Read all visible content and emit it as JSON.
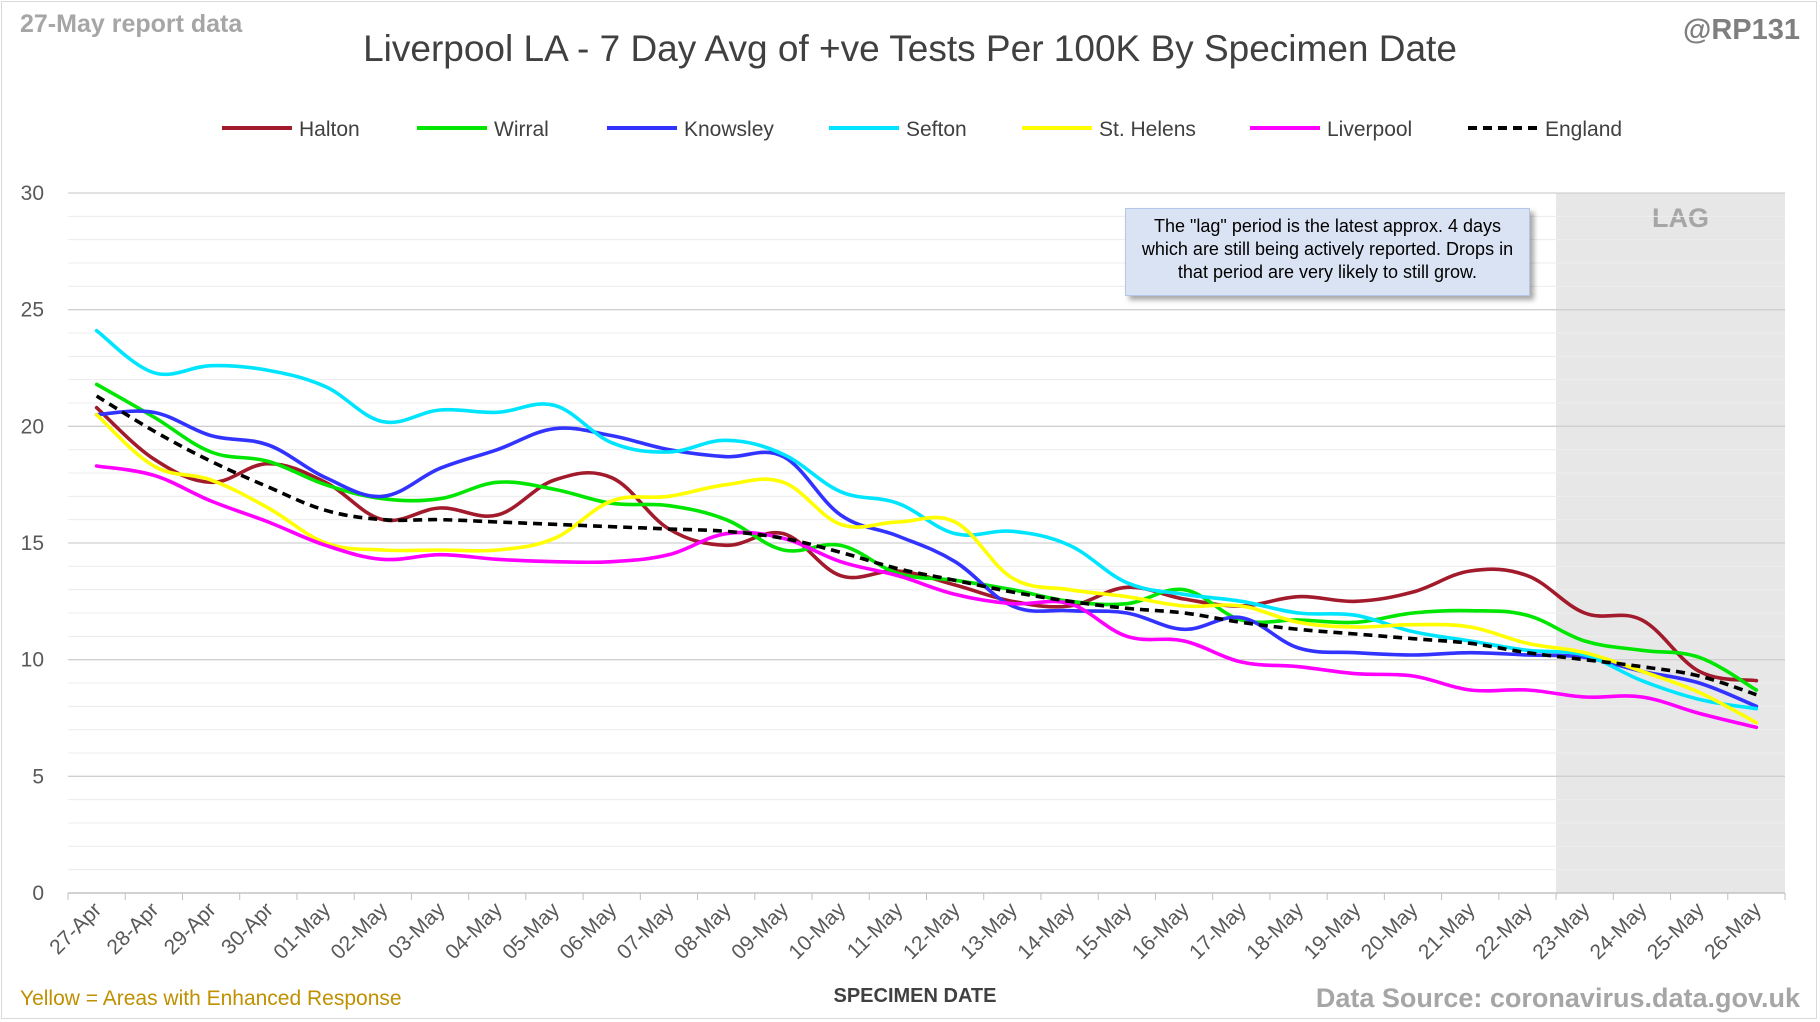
{
  "header": {
    "report_date": "27-May report data",
    "handle": "@RP131",
    "title": "Liverpool LA - 7 Day Avg of +ve Tests Per 100K By Specimen Date"
  },
  "footer": {
    "note": "Yellow = Areas with Enhanced Response",
    "data_source": "Data Source: coronavirus.data.gov.uk"
  },
  "annotation": {
    "lag_label": "LAG",
    "note": "The \"lag\" period is the latest approx. 4 days which are still being actively reported. Drops in that period are very likely to still grow."
  },
  "chart_data": {
    "type": "line",
    "title": "Liverpool LA - 7 Day Avg of +ve Tests Per 100K By Specimen Date",
    "xlabel": "SPECIMEN DATE",
    "ylabel": "",
    "ylim": [
      0,
      30
    ],
    "yticks": [
      0,
      5,
      10,
      15,
      20,
      25,
      30
    ],
    "grid": true,
    "legend_position": "top",
    "lag_start_index": 26,
    "categories": [
      "27-Apr",
      "28-Apr",
      "29-Apr",
      "30-Apr",
      "01-May",
      "02-May",
      "03-May",
      "04-May",
      "05-May",
      "06-May",
      "07-May",
      "08-May",
      "09-May",
      "10-May",
      "11-May",
      "12-May",
      "13-May",
      "14-May",
      "15-May",
      "16-May",
      "17-May",
      "18-May",
      "19-May",
      "20-May",
      "21-May",
      "22-May",
      "23-May",
      "24-May",
      "25-May",
      "26-May"
    ],
    "series": [
      {
        "name": "Halton",
        "color": "#a21b2c",
        "dashed": false,
        "values": [
          20.8,
          18.6,
          17.6,
          18.4,
          17.6,
          16.0,
          16.5,
          16.2,
          17.7,
          17.8,
          15.6,
          14.9,
          15.4,
          13.6,
          13.8,
          13.2,
          12.5,
          12.3,
          13.1,
          12.6,
          12.3,
          12.7,
          12.5,
          12.9,
          13.8,
          13.6,
          12.0,
          11.7,
          9.5,
          9.1
        ]
      },
      {
        "name": "Wirral",
        "color": "#00e600",
        "dashed": false,
        "values": [
          21.8,
          20.4,
          18.9,
          18.5,
          17.5,
          16.9,
          16.9,
          17.6,
          17.3,
          16.7,
          16.6,
          16.0,
          14.7,
          14.9,
          13.7,
          13.4,
          13.0,
          12.5,
          12.4,
          13.0,
          11.7,
          11.7,
          11.6,
          12.0,
          12.1,
          11.9,
          10.8,
          10.4,
          10.1,
          8.7
        ]
      },
      {
        "name": "Knowsley",
        "color": "#3333ff",
        "dashed": false,
        "values": [
          20.5,
          20.6,
          19.6,
          19.2,
          17.8,
          17.0,
          18.2,
          19.0,
          19.9,
          19.6,
          19.0,
          18.7,
          18.7,
          16.2,
          15.3,
          14.2,
          12.3,
          12.1,
          12.0,
          11.3,
          11.8,
          10.5,
          10.3,
          10.2,
          10.3,
          10.2,
          10.1,
          9.5,
          9.0,
          8.0
        ]
      },
      {
        "name": "Sefton",
        "color": "#00e5ff",
        "dashed": false,
        "values": [
          24.1,
          22.3,
          22.6,
          22.4,
          21.7,
          20.2,
          20.7,
          20.6,
          20.9,
          19.3,
          18.9,
          19.4,
          18.8,
          17.2,
          16.7,
          15.4,
          15.5,
          14.9,
          13.3,
          12.8,
          12.5,
          12.0,
          11.9,
          11.2,
          10.8,
          10.4,
          10.2,
          9.1,
          8.3,
          7.9
        ]
      },
      {
        "name": "St. Helens",
        "color": "#ffff00",
        "dashed": false,
        "values": [
          20.5,
          18.3,
          17.7,
          16.5,
          15.0,
          14.7,
          14.7,
          14.7,
          15.2,
          16.8,
          17.0,
          17.5,
          17.6,
          15.8,
          15.9,
          15.9,
          13.5,
          13.0,
          12.7,
          12.3,
          12.3,
          11.6,
          11.4,
          11.5,
          11.4,
          10.7,
          10.3,
          9.5,
          8.6,
          7.3
        ]
      },
      {
        "name": "Liverpool",
        "color": "#ff00ff",
        "dashed": false,
        "values": [
          18.3,
          17.9,
          16.8,
          15.9,
          14.9,
          14.3,
          14.5,
          14.3,
          14.2,
          14.2,
          14.5,
          15.4,
          15.2,
          14.2,
          13.6,
          12.8,
          12.4,
          12.4,
          11.0,
          10.8,
          9.9,
          9.7,
          9.4,
          9.3,
          8.7,
          8.7,
          8.4,
          8.4,
          7.7,
          7.1
        ]
      },
      {
        "name": "England",
        "color": "#000000",
        "dashed": true,
        "values": [
          21.3,
          19.8,
          18.5,
          17.4,
          16.4,
          16.0,
          16.0,
          15.9,
          15.8,
          15.7,
          15.6,
          15.5,
          15.2,
          14.6,
          13.9,
          13.4,
          12.9,
          12.5,
          12.2,
          12.0,
          11.6,
          11.3,
          11.1,
          10.9,
          10.7,
          10.3,
          10.0,
          9.7,
          9.3,
          8.5
        ]
      }
    ]
  }
}
